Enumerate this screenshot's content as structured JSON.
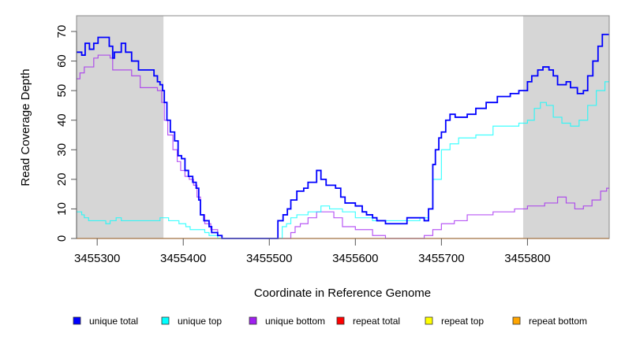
{
  "chart_data": {
    "type": "line",
    "step": true,
    "xlabel": "Coordinate in Reference Genome",
    "ylabel": "Read Coverage Depth",
    "xlim": [
      3455276,
      3455895
    ],
    "ylim": [
      0,
      72
    ],
    "xticks": [
      3455300,
      3455400,
      3455500,
      3455600,
      3455700,
      3455800
    ],
    "yticks": [
      0,
      10,
      20,
      30,
      40,
      50,
      60,
      70
    ],
    "shaded_regions": [
      [
        3455276,
        3455377
      ],
      [
        3455795,
        3455895
      ]
    ],
    "legend_position": "bottom",
    "series": [
      {
        "name": "unique total",
        "color": "#0000ff",
        "points": [
          [
            3455276,
            63
          ],
          [
            3455282,
            62
          ],
          [
            3455286,
            66
          ],
          [
            3455291,
            64
          ],
          [
            3455296,
            66
          ],
          [
            3455301,
            68
          ],
          [
            3455306,
            68
          ],
          [
            3455314,
            65
          ],
          [
            3455318,
            61
          ],
          [
            3455320,
            63
          ],
          [
            3455328,
            66
          ],
          [
            3455333,
            63
          ],
          [
            3455340,
            60
          ],
          [
            3455348,
            57
          ],
          [
            3455361,
            57
          ],
          [
            3455366,
            55
          ],
          [
            3455370,
            53
          ],
          [
            3455373,
            52
          ],
          [
            3455376,
            50
          ],
          [
            3455378,
            46
          ],
          [
            3455381,
            40
          ],
          [
            3455385,
            36
          ],
          [
            3455390,
            33
          ],
          [
            3455394,
            28
          ],
          [
            3455398,
            27
          ],
          [
            3455402,
            23
          ],
          [
            3455406,
            21
          ],
          [
            3455411,
            19
          ],
          [
            3455415,
            17
          ],
          [
            3455418,
            13
          ],
          [
            3455420,
            8
          ],
          [
            3455424,
            6
          ],
          [
            3455430,
            4
          ],
          [
            3455433,
            2
          ],
          [
            3455440,
            1
          ],
          [
            3455445,
            0
          ],
          [
            3455510,
            6
          ],
          [
            3455516,
            8
          ],
          [
            3455521,
            10
          ],
          [
            3455525,
            13
          ],
          [
            3455532,
            16
          ],
          [
            3455540,
            17
          ],
          [
            3455545,
            19
          ],
          [
            3455555,
            23
          ],
          [
            3455560,
            20
          ],
          [
            3455566,
            18
          ],
          [
            3455577,
            17
          ],
          [
            3455583,
            14
          ],
          [
            3455588,
            12
          ],
          [
            3455600,
            11
          ],
          [
            3455608,
            9
          ],
          [
            3455613,
            8
          ],
          [
            3455620,
            7
          ],
          [
            3455625,
            6
          ],
          [
            3455635,
            5
          ],
          [
            3455660,
            7
          ],
          [
            3455680,
            6
          ],
          [
            3455685,
            10
          ],
          [
            3455690,
            25
          ],
          [
            3455693,
            30
          ],
          [
            3455697,
            34
          ],
          [
            3455700,
            36
          ],
          [
            3455705,
            40
          ],
          [
            3455710,
            42
          ],
          [
            3455716,
            41
          ],
          [
            3455730,
            42
          ],
          [
            3455740,
            44
          ],
          [
            3455752,
            46
          ],
          [
            3455765,
            48
          ],
          [
            3455780,
            49
          ],
          [
            3455790,
            50
          ],
          [
            3455800,
            53
          ],
          [
            3455805,
            55
          ],
          [
            3455812,
            57
          ],
          [
            3455818,
            58
          ],
          [
            3455825,
            57
          ],
          [
            3455830,
            55
          ],
          [
            3455835,
            52
          ],
          [
            3455845,
            53
          ],
          [
            3455850,
            51
          ],
          [
            3455858,
            49
          ],
          [
            3455865,
            50
          ],
          [
            3455870,
            55
          ],
          [
            3455876,
            60
          ],
          [
            3455882,
            65
          ],
          [
            3455887,
            69
          ],
          [
            3455895,
            69
          ]
        ]
      },
      {
        "name": "unique top",
        "color": "#00ffff",
        "points": [
          [
            3455276,
            9
          ],
          [
            3455282,
            8
          ],
          [
            3455285,
            7
          ],
          [
            3455290,
            6
          ],
          [
            3455310,
            5
          ],
          [
            3455315,
            6
          ],
          [
            3455322,
            7
          ],
          [
            3455328,
            6
          ],
          [
            3455373,
            7
          ],
          [
            3455383,
            6
          ],
          [
            3455395,
            5
          ],
          [
            3455403,
            4
          ],
          [
            3455408,
            3
          ],
          [
            3455425,
            2
          ],
          [
            3455430,
            1
          ],
          [
            3455440,
            0
          ],
          [
            3455515,
            4
          ],
          [
            3455520,
            5
          ],
          [
            3455525,
            7
          ],
          [
            3455532,
            8
          ],
          [
            3455545,
            9
          ],
          [
            3455560,
            11
          ],
          [
            3455570,
            10
          ],
          [
            3455585,
            9
          ],
          [
            3455600,
            7
          ],
          [
            3455620,
            6
          ],
          [
            3455675,
            7
          ],
          [
            3455685,
            10
          ],
          [
            3455690,
            20
          ],
          [
            3455700,
            30
          ],
          [
            3455710,
            32
          ],
          [
            3455720,
            34
          ],
          [
            3455740,
            35
          ],
          [
            3455760,
            38
          ],
          [
            3455790,
            39
          ],
          [
            3455800,
            40
          ],
          [
            3455808,
            44
          ],
          [
            3455815,
            46
          ],
          [
            3455822,
            45
          ],
          [
            3455830,
            41
          ],
          [
            3455840,
            39
          ],
          [
            3455850,
            38
          ],
          [
            3455860,
            40
          ],
          [
            3455870,
            45
          ],
          [
            3455880,
            50
          ],
          [
            3455890,
            53
          ],
          [
            3455895,
            53
          ]
        ]
      },
      {
        "name": "unique bottom",
        "color": "#a020f0",
        "points": [
          [
            3455276,
            54
          ],
          [
            3455280,
            56
          ],
          [
            3455285,
            58
          ],
          [
            3455296,
            61
          ],
          [
            3455301,
            62
          ],
          [
            3455315,
            61
          ],
          [
            3455318,
            57
          ],
          [
            3455330,
            57
          ],
          [
            3455340,
            55
          ],
          [
            3455350,
            51
          ],
          [
            3455370,
            50
          ],
          [
            3455375,
            46
          ],
          [
            3455378,
            40
          ],
          [
            3455382,
            35
          ],
          [
            3455388,
            30
          ],
          [
            3455393,
            26
          ],
          [
            3455397,
            23
          ],
          [
            3455402,
            21
          ],
          [
            3455407,
            20
          ],
          [
            3455412,
            18
          ],
          [
            3455416,
            14
          ],
          [
            3455420,
            8
          ],
          [
            3455425,
            5
          ],
          [
            3455432,
            3
          ],
          [
            3455440,
            1
          ],
          [
            3455445,
            0
          ],
          [
            3455525,
            2
          ],
          [
            3455530,
            4
          ],
          [
            3455536,
            5
          ],
          [
            3455545,
            7
          ],
          [
            3455555,
            9
          ],
          [
            3455575,
            7
          ],
          [
            3455585,
            4
          ],
          [
            3455600,
            3
          ],
          [
            3455620,
            1
          ],
          [
            3455635,
            0
          ],
          [
            3455680,
            1
          ],
          [
            3455690,
            3
          ],
          [
            3455700,
            5
          ],
          [
            3455715,
            6
          ],
          [
            3455730,
            8
          ],
          [
            3455760,
            9
          ],
          [
            3455785,
            10
          ],
          [
            3455800,
            11
          ],
          [
            3455820,
            12
          ],
          [
            3455835,
            14
          ],
          [
            3455845,
            12
          ],
          [
            3455855,
            10
          ],
          [
            3455865,
            11
          ],
          [
            3455875,
            13
          ],
          [
            3455885,
            16
          ],
          [
            3455892,
            17
          ],
          [
            3455895,
            17
          ]
        ]
      },
      {
        "name": "repeat total",
        "color": "#ff0000",
        "points": [
          [
            3455276,
            0
          ],
          [
            3455895,
            0
          ]
        ]
      },
      {
        "name": "repeat top",
        "color": "#ffff00",
        "points": [
          [
            3455276,
            0
          ],
          [
            3455895,
            0
          ]
        ]
      },
      {
        "name": "repeat bottom",
        "color": "#ffa500",
        "points": [
          [
            3455276,
            0
          ],
          [
            3455895,
            0
          ]
        ]
      }
    ]
  }
}
